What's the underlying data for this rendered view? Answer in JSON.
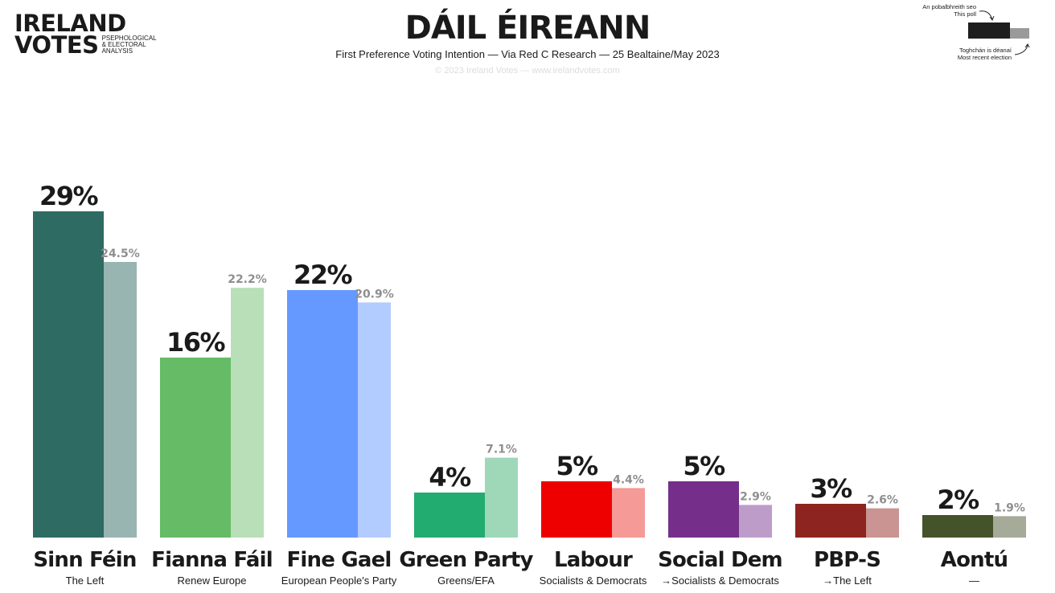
{
  "logo": {
    "line1": "IRELAND",
    "line2": "VOTES",
    "tagline1": "Psephological",
    "tagline2": "& Electoral",
    "tagline3": "Analysis"
  },
  "header": {
    "title": "DÁIL ÉIREANN",
    "subtitle": "First Preference Voting Intention — Via Red C Research — 25 Bealtaine/May 2023",
    "copyright": "© 2023 Ireland Votes — www.irelandvotes.com"
  },
  "legend": {
    "poll_irish": "An pobalbhreith seo",
    "poll_english": "This poll",
    "election_irish": "Toghchán is déanaí",
    "election_english": "Most recent election",
    "poll_color": "#1e1e1e",
    "election_color": "#9a9a9a"
  },
  "chart_data": {
    "type": "bar",
    "title": "DÁIL ÉIREANN",
    "ylim": [
      0,
      35
    ],
    "grid": false,
    "legend": "top-right",
    "series": [
      {
        "name": "This poll",
        "values": [
          29,
          16,
          22,
          4,
          5,
          5,
          3,
          2
        ]
      },
      {
        "name": "Most recent election",
        "values": [
          24.5,
          22.2,
          20.9,
          7.1,
          4.4,
          2.9,
          2.6,
          1.9
        ]
      }
    ],
    "parties": [
      {
        "name": "Sinn Féin",
        "group": "The Left",
        "poll": 29,
        "poll_label": "29%",
        "prev": 24.5,
        "prev_label": "24.5%",
        "color": "#2e6b62",
        "light": "#98b5b2"
      },
      {
        "name": "Fianna Fáil",
        "group": "Renew Europe",
        "poll": 16,
        "poll_label": "16%",
        "prev": 22.2,
        "prev_label": "22.2%",
        "color": "#66bb66",
        "light": "#b8dfb8"
      },
      {
        "name": "Fine Gael",
        "group": "European People's Party",
        "poll": 22,
        "poll_label": "22%",
        "prev": 20.9,
        "prev_label": "20.9%",
        "color": "#6699ff",
        "light": "#b3ccff"
      },
      {
        "name": "Green Party",
        "group": "Greens/EFA",
        "poll": 4,
        "poll_label": "4%",
        "prev": 7.1,
        "prev_label": "7.1%",
        "color": "#22ac6f",
        "light": "#9ed8b8"
      },
      {
        "name": "Labour",
        "group": "Socialists & Democrats",
        "poll": 5,
        "poll_label": "5%",
        "prev": 4.4,
        "prev_label": "4.4%",
        "color": "#ee0000",
        "light": "#f59a96"
      },
      {
        "name": "Social Dem",
        "group": "→Socialists & Democrats",
        "poll": 5,
        "poll_label": "5%",
        "prev": 2.9,
        "prev_label": "2.9%",
        "color": "#752f8b",
        "light": "#bd9cca"
      },
      {
        "name": "PBP-S",
        "group": "→The Left",
        "poll": 3,
        "poll_label": "3%",
        "prev": 2.6,
        "prev_label": "2.6%",
        "color": "#8e2420",
        "light": "#c99491"
      },
      {
        "name": "Aontú",
        "group": "—",
        "poll": 2,
        "poll_label": "2%",
        "prev": 1.9,
        "prev_label": "1.9%",
        "color": "#44532a",
        "light": "#a6aa99"
      }
    ]
  }
}
